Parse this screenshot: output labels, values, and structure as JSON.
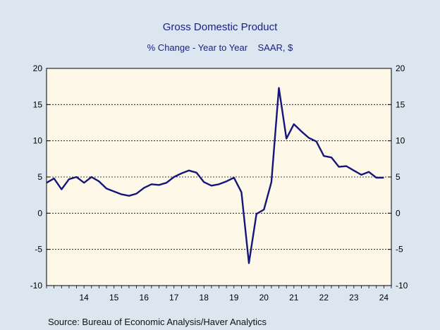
{
  "chart_data": {
    "type": "line",
    "title": "Gross Domestic Product",
    "subtitle": "% Change - Year to Year    SAAR, $",
    "source": "Source:  Bureau of Economic Analysis/Haver Analytics",
    "ylim": [
      -10,
      20
    ],
    "yticks": [
      -10,
      -5,
      0,
      5,
      10,
      15,
      20
    ],
    "xlim": [
      2013.25,
      2024.75
    ],
    "xtick_labels": [
      "14",
      "15",
      "16",
      "17",
      "18",
      "19",
      "20",
      "21",
      "22",
      "23",
      "24"
    ],
    "grid": "horizontal dotted",
    "line_color": "#15157a",
    "x": [
      2013.25,
      2013.5,
      2013.75,
      2014.0,
      2014.25,
      2014.5,
      2014.75,
      2015.0,
      2015.25,
      2015.5,
      2015.75,
      2016.0,
      2016.25,
      2016.5,
      2016.75,
      2017.0,
      2017.25,
      2017.5,
      2017.75,
      2018.0,
      2018.25,
      2018.5,
      2018.75,
      2019.0,
      2019.25,
      2019.5,
      2019.75,
      2020.0,
      2020.25,
      2020.5,
      2020.75,
      2021.0,
      2021.25,
      2021.5,
      2021.75,
      2022.0,
      2022.25,
      2022.5,
      2022.75,
      2023.0,
      2023.25,
      2023.5,
      2023.75,
      2024.0,
      2024.25,
      2024.5
    ],
    "values": [
      4.2,
      4.8,
      3.3,
      4.7,
      5.0,
      4.2,
      5.0,
      4.4,
      3.4,
      3.0,
      2.6,
      2.4,
      2.7,
      3.5,
      4.0,
      3.9,
      4.2,
      5.0,
      5.5,
      5.9,
      5.6,
      4.3,
      3.8,
      4.0,
      4.4,
      4.9,
      2.9,
      -6.9,
      -0.1,
      0.5,
      4.3,
      17.3,
      10.3,
      12.3,
      11.3,
      10.4,
      9.9,
      7.9,
      7.7,
      6.4,
      6.5,
      5.9,
      5.3,
      5.7,
      4.9,
      4.9
    ]
  },
  "colors": {
    "page_background": "#dce6f0",
    "plot_background": "#fdf8e8",
    "title_color": "#1b1b8a"
  }
}
